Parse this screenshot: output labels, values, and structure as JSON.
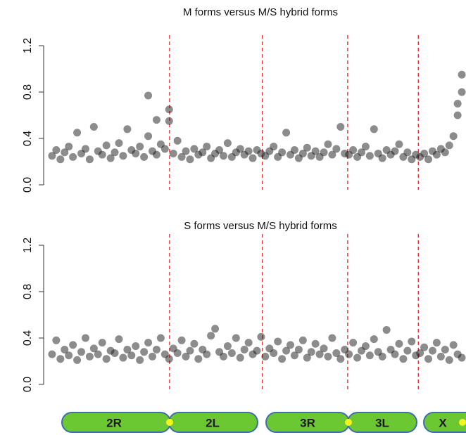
{
  "chart_data": [
    {
      "type": "scatter",
      "title": "M forms versus M/S hybrid forms",
      "xlim": [
        0,
        100
      ],
      "ylim": [
        0,
        1.2
      ],
      "yticks": [
        {
          "value": 0,
          "label": "0.0"
        },
        {
          "value": 0.4,
          "label": "0.4"
        },
        {
          "value": 0.8,
          "label": "0.8"
        },
        {
          "value": 1.2,
          "label": "1.2"
        }
      ],
      "vlines": [
        29.1,
        51.3,
        71.7,
        88.6
      ],
      "vline_color": "#e8272a",
      "color": "#1a1a1a",
      "x": [
        1,
        2,
        3,
        4,
        5,
        6,
        7,
        8,
        9,
        10,
        11,
        12,
        13,
        14,
        15,
        16,
        17,
        18,
        19,
        20,
        21,
        22,
        23,
        24,
        25,
        26,
        27,
        28,
        29,
        30,
        31,
        32,
        33,
        34,
        35,
        36,
        37,
        38,
        39,
        40,
        41,
        42,
        43,
        44,
        45,
        46,
        47,
        48,
        49,
        50,
        51,
        52,
        53,
        54,
        55,
        56,
        57,
        58,
        59,
        60,
        61,
        62,
        63,
        64,
        65,
        66,
        67,
        68,
        69,
        70,
        71,
        72,
        73,
        74,
        75,
        76,
        77,
        78,
        79,
        80,
        81,
        82,
        83,
        84,
        85,
        86,
        87,
        88,
        89,
        90,
        91,
        92,
        93,
        94,
        95,
        96,
        97,
        98,
        99,
        24,
        26,
        29,
        98,
        99
      ],
      "values": [
        0.25,
        0.3,
        0.22,
        0.28,
        0.33,
        0.24,
        0.45,
        0.27,
        0.31,
        0.22,
        0.5,
        0.29,
        0.26,
        0.34,
        0.23,
        0.28,
        0.36,
        0.25,
        0.48,
        0.3,
        0.27,
        0.33,
        0.24,
        0.42,
        0.29,
        0.26,
        0.35,
        0.31,
        0.55,
        0.27,
        0.38,
        0.24,
        0.29,
        0.22,
        0.31,
        0.26,
        0.28,
        0.33,
        0.23,
        0.27,
        0.3,
        0.25,
        0.36,
        0.24,
        0.28,
        0.31,
        0.26,
        0.29,
        0.23,
        0.3,
        0.27,
        0.25,
        0.29,
        0.33,
        0.24,
        0.28,
        0.45,
        0.26,
        0.3,
        0.23,
        0.27,
        0.32,
        0.25,
        0.29,
        0.24,
        0.28,
        0.35,
        0.26,
        0.31,
        0.5,
        0.27,
        0.26,
        0.3,
        0.24,
        0.28,
        0.33,
        0.25,
        0.48,
        0.27,
        0.23,
        0.3,
        0.26,
        0.29,
        0.35,
        0.24,
        0.28,
        0.22,
        0.26,
        0.24,
        0.27,
        0.22,
        0.29,
        0.26,
        0.31,
        0.28,
        0.34,
        0.42,
        0.6,
        0.95,
        0.77,
        0.56,
        0.65,
        0.7,
        0.8
      ]
    },
    {
      "type": "scatter",
      "title": "S forms versus M/S hybrid forms",
      "xlim": [
        0,
        100
      ],
      "ylim": [
        0,
        1.2
      ],
      "yticks": [
        {
          "value": 0,
          "label": "0.0"
        },
        {
          "value": 0.4,
          "label": "0.4"
        },
        {
          "value": 0.8,
          "label": "0.8"
        },
        {
          "value": 1.2,
          "label": "1.2"
        }
      ],
      "vlines": [
        29.1,
        51.3,
        71.7,
        88.6
      ],
      "vline_color": "#e8272a",
      "color": "#1a1a1a",
      "x": [
        1,
        2,
        3,
        4,
        5,
        6,
        7,
        8,
        9,
        10,
        11,
        12,
        13,
        14,
        15,
        16,
        17,
        18,
        19,
        20,
        21,
        22,
        23,
        24,
        25,
        26,
        27,
        28,
        29,
        30,
        31,
        32,
        33,
        34,
        35,
        36,
        37,
        38,
        39,
        40,
        41,
        42,
        43,
        44,
        45,
        46,
        47,
        48,
        49,
        50,
        51,
        52,
        53,
        54,
        55,
        56,
        57,
        58,
        59,
        60,
        61,
        62,
        63,
        64,
        65,
        66,
        67,
        68,
        69,
        70,
        71,
        72,
        73,
        74,
        75,
        76,
        77,
        78,
        79,
        80,
        81,
        82,
        83,
        84,
        85,
        86,
        87,
        88,
        89,
        90,
        91,
        92,
        93,
        94,
        95,
        96,
        97,
        98,
        99
      ],
      "values": [
        0.26,
        0.38,
        0.22,
        0.3,
        0.25,
        0.34,
        0.21,
        0.28,
        0.4,
        0.24,
        0.31,
        0.26,
        0.36,
        0.22,
        0.29,
        0.27,
        0.39,
        0.23,
        0.3,
        0.25,
        0.33,
        0.21,
        0.28,
        0.36,
        0.24,
        0.3,
        0.4,
        0.26,
        0.22,
        0.31,
        0.27,
        0.38,
        0.24,
        0.29,
        0.35,
        0.22,
        0.3,
        0.26,
        0.42,
        0.48,
        0.28,
        0.24,
        0.33,
        0.27,
        0.4,
        0.23,
        0.3,
        0.36,
        0.26,
        0.29,
        0.41,
        0.24,
        0.31,
        0.27,
        0.37,
        0.22,
        0.29,
        0.34,
        0.25,
        0.3,
        0.38,
        0.23,
        0.28,
        0.35,
        0.26,
        0.31,
        0.24,
        0.4,
        0.27,
        0.22,
        0.3,
        0.26,
        0.36,
        0.23,
        0.29,
        0.33,
        0.25,
        0.39,
        0.28,
        0.24,
        0.47,
        0.3,
        0.26,
        0.35,
        0.22,
        0.29,
        0.37,
        0.25,
        0.27,
        0.32,
        0.22,
        0.29,
        0.36,
        0.24,
        0.3,
        0.21,
        0.34,
        0.26,
        0.23
      ]
    }
  ],
  "chromosomes": [
    "2R",
    "2L",
    "3R",
    "3L",
    "X"
  ]
}
